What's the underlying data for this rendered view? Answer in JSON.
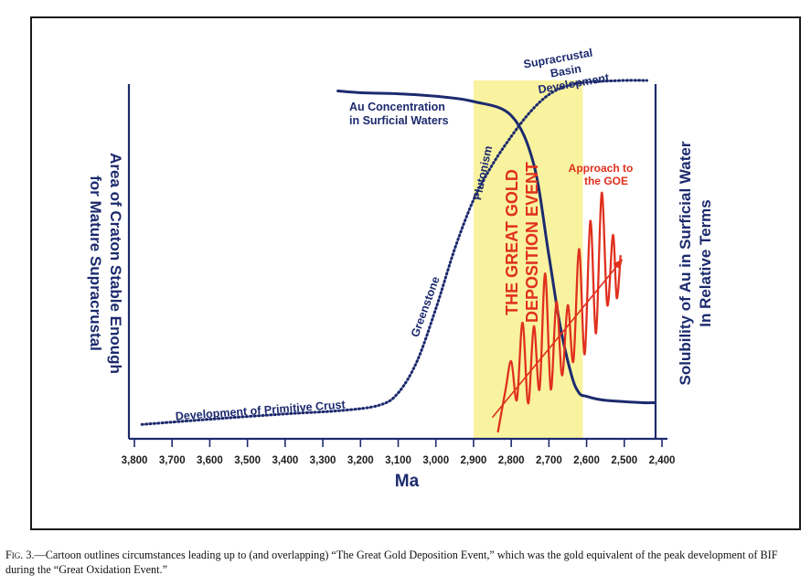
{
  "chart_data": {
    "type": "line",
    "xlabel": "Ma",
    "xlim": [
      3800,
      2400
    ],
    "x_ticks": [
      "3,800",
      "3,700",
      "3,600",
      "3,500",
      "3,400",
      "3,300",
      "3,200",
      "3,100",
      "3,000",
      "2,900",
      "2,800",
      "2,700",
      "2,600",
      "2,500",
      "2,400"
    ],
    "ylabel_left": [
      "Area of Craton Stable Enough",
      "for Mature Supracrustal"
    ],
    "ylabel_right": [
      "Solubility of Au in Surficial Water",
      "In Relative Terms"
    ],
    "y_units": "relative",
    "highlight_band": {
      "x_start": 2900,
      "x_end": 2610,
      "color": "#f9f3a0",
      "label": [
        "THE GREAT GOLD",
        "DEPOSITION EVENT"
      ]
    },
    "series": [
      {
        "name": "Au Concentration in Surficial Waters",
        "style": "solid",
        "color": "#1c2a6e",
        "x": [
          3260,
          3200,
          3100,
          3000,
          2900,
          2800,
          2740,
          2700,
          2670,
          2640,
          2620,
          2600,
          2560,
          2500,
          2450,
          2420
        ],
        "y": [
          0.97,
          0.965,
          0.962,
          0.955,
          0.94,
          0.9,
          0.76,
          0.5,
          0.3,
          0.16,
          0.11,
          0.1,
          0.09,
          0.085,
          0.082,
          0.082
        ]
      },
      {
        "name": "Supracrustal Basin Development",
        "style": "dotted",
        "color": "#1c2a6e",
        "x": [
          3780,
          3600,
          3400,
          3250,
          3150,
          3100,
          3050,
          3000,
          2950,
          2900,
          2850,
          2800,
          2750,
          2700,
          2650,
          2600,
          2500,
          2440
        ],
        "y": [
          0.02,
          0.035,
          0.05,
          0.06,
          0.075,
          0.11,
          0.2,
          0.35,
          0.52,
          0.66,
          0.76,
          0.84,
          0.91,
          0.96,
          0.985,
          0.995,
          1.0,
          1.0
        ]
      },
      {
        "name": "Approach to the GOE",
        "style": "solid",
        "color": "#e0301e",
        "x": [
          2835,
          2815,
          2800,
          2785,
          2770,
          2755,
          2740,
          2725,
          2710,
          2695,
          2680,
          2665,
          2650,
          2635,
          2620,
          2605,
          2590,
          2575,
          2560,
          2545,
          2530,
          2520,
          2510
        ],
        "y": [
          0.0,
          0.12,
          0.2,
          0.09,
          0.31,
          0.08,
          0.3,
          0.12,
          0.45,
          0.12,
          0.37,
          0.16,
          0.36,
          0.2,
          0.52,
          0.22,
          0.6,
          0.28,
          0.68,
          0.36,
          0.56,
          0.38,
          0.5
        ]
      }
    ],
    "arrow": {
      "from": [
        2850,
        0.04
      ],
      "to": [
        2505,
        0.49
      ],
      "color": "#e0301e"
    },
    "annotations": {
      "au": [
        "Au Concentration",
        "in Surficial Waters"
      ],
      "basin": [
        "Supracrustal",
        "Basin",
        "Development"
      ],
      "plutonism": "Plutonism",
      "greenstone": "Greenstone",
      "primitive": "Development of Primitive Crust",
      "goe": [
        "Approach to",
        "the GOE"
      ]
    },
    "grid": false,
    "legend": "none"
  },
  "caption": {
    "fig_label": "Fig. 3.",
    "text": "—Cartoon outlines circumstances leading up to (and overlapping) “The Great Gold Deposition Event,” which was the gold equivalent of the peak development of BIF during the “Great Oxidation Event.”"
  }
}
